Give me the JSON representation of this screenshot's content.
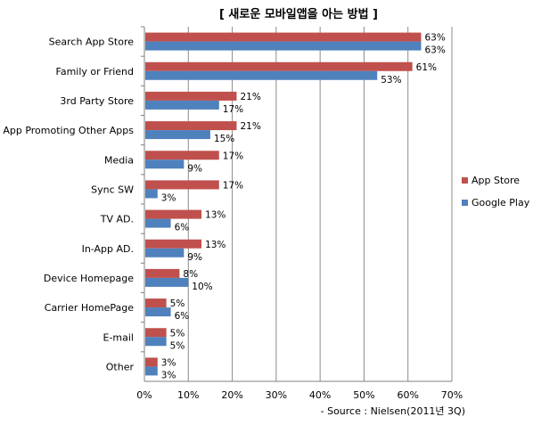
{
  "chart_data": {
    "type": "bar",
    "orientation": "horizontal",
    "title": "[ 새로운 모바일앱을 아는 방법 ]",
    "categories": [
      "Search App Store",
      "Family or Friend",
      "3rd Party Store",
      "App Promoting Other Apps",
      "Media",
      "Sync SW",
      "TV AD.",
      "In-App AD.",
      "Device Homepage",
      "Carrier HomePage",
      "E-mail",
      "Other"
    ],
    "series": [
      {
        "name": "App Store",
        "color": "#C0504D",
        "values": [
          63,
          61,
          21,
          21,
          17,
          17,
          13,
          13,
          8,
          5,
          5,
          3
        ],
        "labels": [
          "63%",
          "61%",
          "21%",
          "21%",
          "17%",
          "17%",
          "13%",
          "13%",
          "8%",
          "5%",
          "5%",
          "3%"
        ]
      },
      {
        "name": "Google Play",
        "color": "#4F81BD",
        "values": [
          63,
          53,
          17,
          15,
          9,
          3,
          6,
          9,
          10,
          6,
          5,
          3
        ],
        "labels": [
          "63%",
          "53%",
          "17%",
          "15%",
          "9%",
          "3%",
          "6%",
          "9%",
          "10%",
          "6%",
          "5%",
          "3%"
        ]
      }
    ],
    "xlim": [
      0,
      70
    ],
    "xticks": [
      0,
      10,
      20,
      30,
      40,
      50,
      60,
      70
    ],
    "xtick_labels": [
      "0%",
      "10%",
      "20%",
      "30%",
      "40%",
      "50%",
      "60%",
      "70%"
    ],
    "grid": true,
    "legend_position": "right",
    "source": "- Source : Nielsen(2011년 3Q)"
  }
}
